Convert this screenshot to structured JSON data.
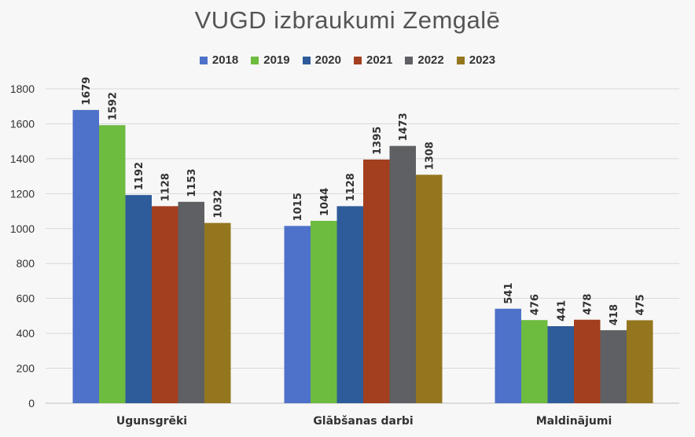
{
  "chart_data": {
    "type": "bar",
    "title": "VUGD izbraukumi Zemgalē",
    "categories": [
      "Ugunsgrēki",
      "Glābšanas darbi",
      "Maldinājumi"
    ],
    "series": [
      {
        "name": "2018",
        "color": "#4e71c9",
        "values": [
          1679,
          1015,
          541
        ]
      },
      {
        "name": "2019",
        "color": "#6dbb3f",
        "values": [
          1592,
          1044,
          476
        ]
      },
      {
        "name": "2020",
        "color": "#2e5b99",
        "values": [
          1192,
          1128,
          441
        ]
      },
      {
        "name": "2021",
        "color": "#a33f1f",
        "values": [
          1128,
          1395,
          478
        ]
      },
      {
        "name": "2022",
        "color": "#5f6063",
        "values": [
          1153,
          1473,
          418
        ]
      },
      {
        "name": "2023",
        "color": "#94761f",
        "values": [
          1032,
          1308,
          475
        ]
      }
    ],
    "ylim": [
      0,
      1800
    ],
    "yticks": [
      0,
      200,
      400,
      600,
      800,
      1000,
      1200,
      1400,
      1600,
      1800
    ],
    "xlabel": "",
    "ylabel": "",
    "grid": true,
    "legend_position": "top"
  }
}
